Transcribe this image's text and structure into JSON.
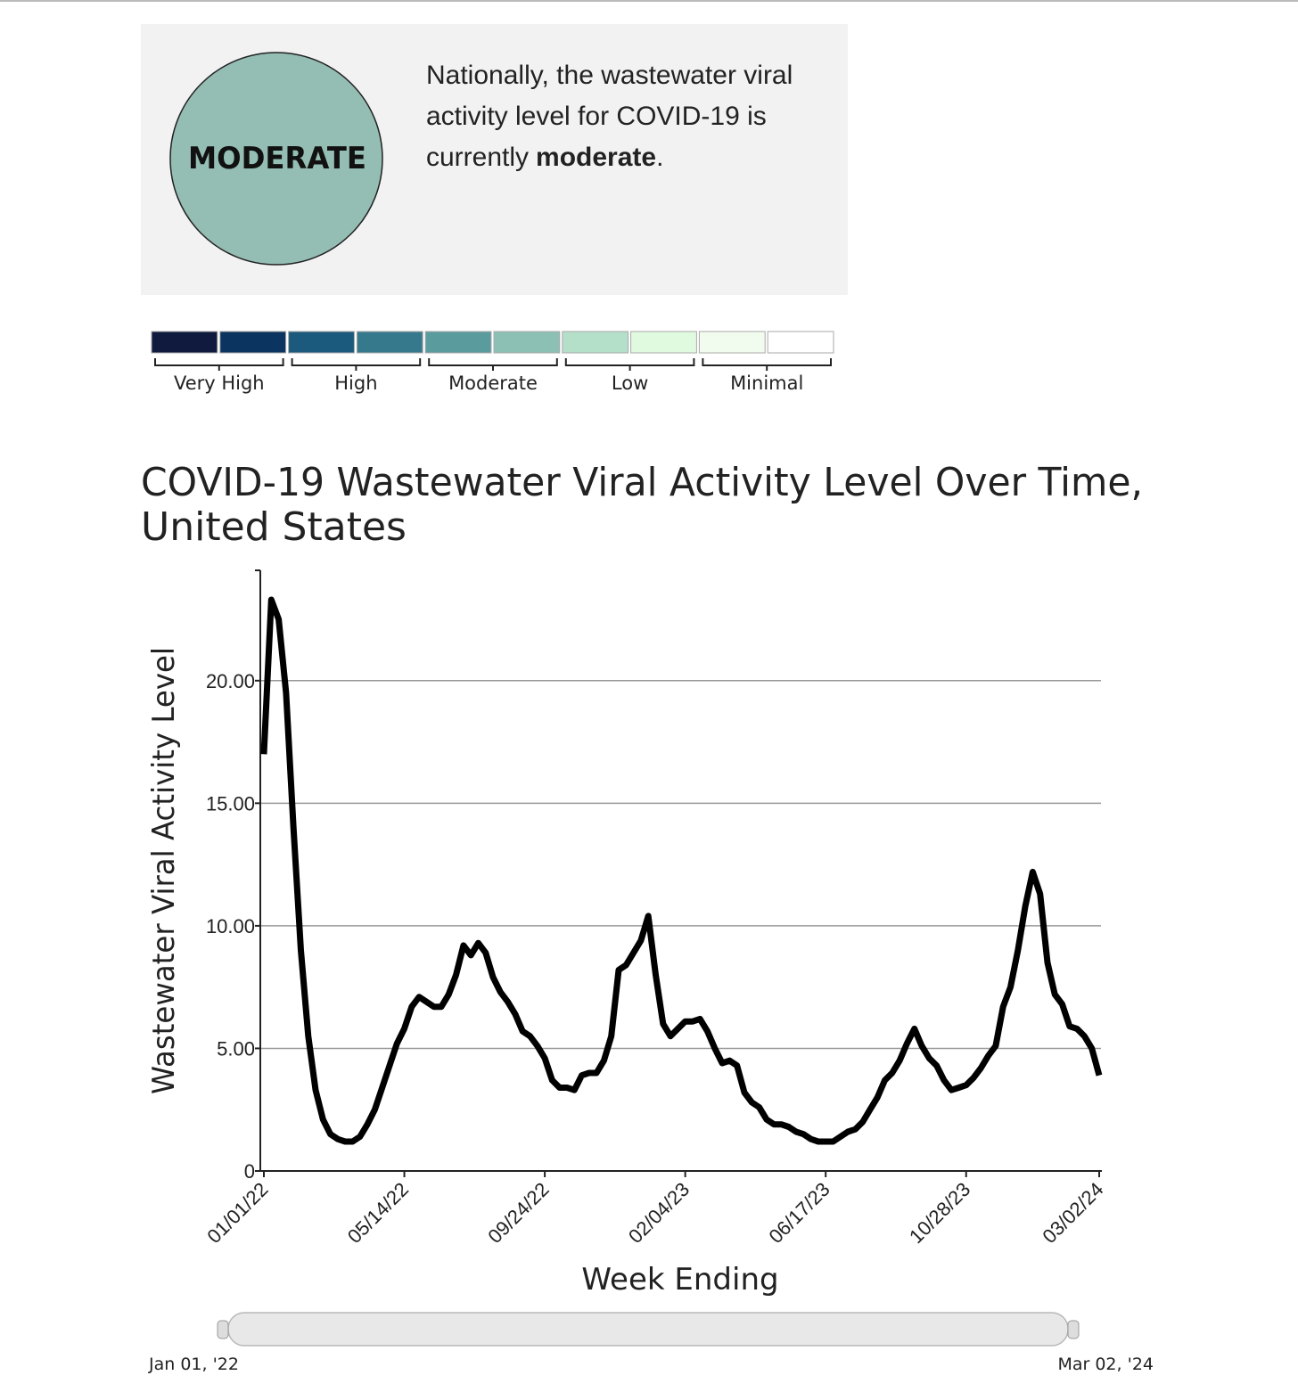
{
  "summary": {
    "badge": "MODERATE",
    "lines": [
      "Nationally, the wastewater viral",
      "activity level for COVID-19 is",
      "currently"
    ],
    "emphasis": "moderate",
    "end": "."
  },
  "scale": {
    "colors": [
      "#0f1a3e",
      "#0b3460",
      "#1c5a7d",
      "#37798c",
      "#5a9b9e",
      "#8cc0b4",
      "#b4dfc8",
      "#e0fadf",
      "#f1fcef",
      "#ffffff"
    ],
    "levels": [
      "Very High",
      "High",
      "Moderate",
      "Low",
      "Minimal"
    ]
  },
  "chart_data": {
    "type": "line",
    "title": [
      "COVID-19 Wastewater Viral Activity Level Over Time,",
      "United States"
    ],
    "x_label": "Week Ending",
    "y_label": "Wastewater Viral Activity Level",
    "color": "#000000",
    "grid": true,
    "x": [
      "01/01/22",
      "01/08/22",
      "01/15/22",
      "01/22/22",
      "01/29/22",
      "02/05/22",
      "02/12/22",
      "02/19/22",
      "02/26/22",
      "03/05/22",
      "03/12/22",
      "03/19/22",
      "03/26/22",
      "04/02/22",
      "04/09/22",
      "04/16/22",
      "04/23/22",
      "04/30/22",
      "05/07/22",
      "05/14/22",
      "05/21/22",
      "05/28/22",
      "06/04/22",
      "06/11/22",
      "06/18/22",
      "06/25/22",
      "07/02/22",
      "07/09/22",
      "07/16/22",
      "07/23/22",
      "07/30/22",
      "08/06/22",
      "08/13/22",
      "08/20/22",
      "08/27/22",
      "09/03/22",
      "09/10/22",
      "09/17/22",
      "09/24/22",
      "10/01/22",
      "10/08/22",
      "10/15/22",
      "10/22/22",
      "10/29/22",
      "11/05/22",
      "11/12/22",
      "11/19/22",
      "11/26/22",
      "12/03/22",
      "12/10/22",
      "12/17/22",
      "12/24/22",
      "12/31/22",
      "01/07/23",
      "01/14/23",
      "01/21/23",
      "01/28/23",
      "02/04/23",
      "02/11/23",
      "02/18/23",
      "02/25/23",
      "03/04/23",
      "03/11/23",
      "03/18/23",
      "03/25/23",
      "04/01/23",
      "04/08/23",
      "04/15/23",
      "04/22/23",
      "04/29/23",
      "05/06/23",
      "05/13/23",
      "05/20/23",
      "05/27/23",
      "06/03/23",
      "06/10/23",
      "06/17/23",
      "06/24/23",
      "07/01/23",
      "07/08/23",
      "07/15/23",
      "07/22/23",
      "07/29/23",
      "08/05/23",
      "08/12/23",
      "08/19/23",
      "08/26/23",
      "09/02/23",
      "09/09/23",
      "09/16/23",
      "09/23/23",
      "09/30/23",
      "10/07/23",
      "10/14/23",
      "10/21/23",
      "10/28/23",
      "11/04/23",
      "11/11/23",
      "11/18/23",
      "11/25/23",
      "12/02/23",
      "12/09/23",
      "12/16/23",
      "12/23/23",
      "12/30/23",
      "01/06/24",
      "01/13/24",
      "01/20/24",
      "01/27/24",
      "02/03/24",
      "02/10/24",
      "02/17/24",
      "02/24/24",
      "03/02/24"
    ],
    "values": [
      17,
      23.3,
      22.5,
      19.5,
      14,
      9,
      5.5,
      3.3,
      2.1,
      1.5,
      1.3,
      1.2,
      1.2,
      1.4,
      1.9,
      2.5,
      3.4,
      4.3,
      5.2,
      5.8,
      6.7,
      7.1,
      6.9,
      6.7,
      6.7,
      7.2,
      8.0,
      9.2,
      8.8,
      9.3,
      8.9,
      7.9,
      7.3,
      6.9,
      6.4,
      5.7,
      5.5,
      5.1,
      4.6,
      3.7,
      3.4,
      3.4,
      3.3,
      3.9,
      4.0,
      4.0,
      4.5,
      5.5,
      8.2,
      8.4,
      8.9,
      9.4,
      10.4,
      8.0,
      6.0,
      5.5,
      5.8,
      6.1,
      6.1,
      6.2,
      5.7,
      5.0,
      4.4,
      4.5,
      4.3,
      3.2,
      2.8,
      2.6,
      2.1,
      1.9,
      1.9,
      1.8,
      1.6,
      1.5,
      1.3,
      1.2,
      1.2,
      1.2,
      1.4,
      1.6,
      1.7,
      2.0,
      2.5,
      3.0,
      3.7,
      4.0,
      4.5,
      5.2,
      5.8,
      5.1,
      4.6,
      4.3,
      3.7,
      3.3,
      3.4,
      3.5,
      3.8,
      4.2,
      4.7,
      5.1,
      6.7,
      7.5,
      9.0,
      10.8,
      12.2,
      11.3,
      8.5,
      7.2,
      6.8,
      5.9,
      5.8,
      5.5,
      5.0,
      3.9
    ],
    "xlim": [
      "01/01/22",
      "03/02/24"
    ],
    "xticks": [
      "01/01/22",
      "05/14/22",
      "09/24/22",
      "02/04/23",
      "06/17/23",
      "10/28/23",
      "03/02/24"
    ],
    "ylim": [
      0,
      24.5
    ],
    "yticks": [
      0,
      {
        "value": 5,
        "label": "5.00"
      },
      {
        "value": 10,
        "label": "10.00"
      },
      {
        "value": 15,
        "label": "15.00"
      },
      {
        "value": 20,
        "label": "20.00"
      }
    ]
  },
  "slider": {
    "start": "Jan 01, '22",
    "end": "Mar 02, '24"
  }
}
